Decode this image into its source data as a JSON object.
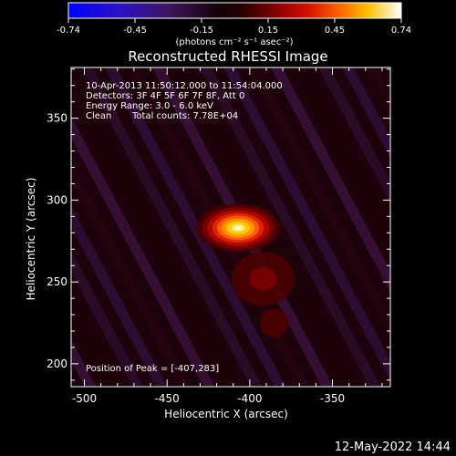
{
  "chart_data": {
    "type": "heatmap",
    "title": "Reconstructed RHESSI Image",
    "xlabel": "Heliocentric X (arcsec)",
    "ylabel": "Heliocentric Y (arcsec)",
    "xlim": [
      -508,
      -315
    ],
    "ylim": [
      186,
      381
    ],
    "x_ticks": [
      -500,
      -450,
      -400,
      -350
    ],
    "y_ticks": [
      200,
      250,
      300,
      350
    ],
    "colorbar": {
      "ticks": [
        "-0.74",
        "-0.45",
        "-0.15",
        "0.15",
        "0.45",
        "0.74"
      ],
      "range": [
        -0.74,
        0.74
      ],
      "unit_label": "(photons cm⁻² s⁻¹ asec⁻²)"
    },
    "annotations": [
      "10-Apr-2013 11:50:12.000 to 11:54:04.000",
      "Detectors: 3F 4F 5F 6F 7F 8F, Att 0",
      "Energy Range: 3.0 - 6.0 keV",
      "Clean",
      "Total counts: 7.78E+04"
    ],
    "peak_label": "Position of Peak = [-407,283]",
    "peak": {
      "x": -407,
      "y": 283,
      "value": 0.74
    },
    "sources": [
      {
        "x": -407,
        "y": 283,
        "sx": 12,
        "sy": 7,
        "amp": 0.74
      },
      {
        "x": -392,
        "y": 252,
        "sx": 16,
        "sy": 14,
        "amp": 0.16
      },
      {
        "x": -385,
        "y": 225,
        "sx": 18,
        "sy": 18,
        "amp": 0.09
      }
    ],
    "grid": false,
    "colormap": "rhessi (blue-purple-red-yellow-white)"
  },
  "footer": {
    "date": "12-May-2022 14:44"
  }
}
